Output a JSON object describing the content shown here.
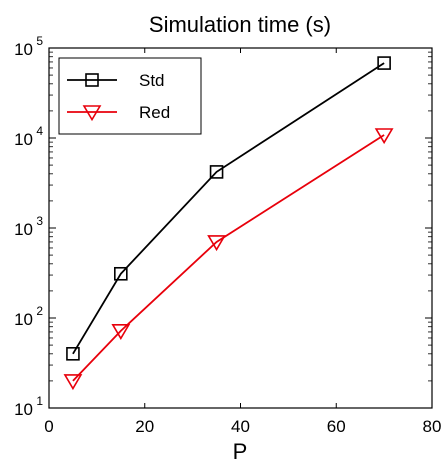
{
  "chart_data": {
    "type": "line",
    "title": "Simulation time (s)",
    "xlabel": "P",
    "ylabel": "",
    "xlim": [
      0,
      80
    ],
    "ylim": [
      10,
      100000
    ],
    "yscale": "log",
    "x_ticks": [
      "0",
      "20",
      "40",
      "60",
      "80"
    ],
    "y_ticks": [
      {
        "base": "10",
        "exp": "1"
      },
      {
        "base": "10",
        "exp": "2"
      },
      {
        "base": "10",
        "exp": "3"
      },
      {
        "base": "10",
        "exp": "4"
      },
      {
        "base": "10",
        "exp": "5"
      }
    ],
    "legend_position": "top-left",
    "series": [
      {
        "name": "Std",
        "color": "#000000",
        "marker": "square",
        "x": [
          5,
          15,
          35,
          70
        ],
        "y": [
          40,
          310,
          4200,
          68000
        ]
      },
      {
        "name": "Red",
        "color": "#e8000b",
        "marker": "triangle-down",
        "x": [
          5,
          15,
          35,
          70
        ],
        "y": [
          20,
          72,
          700,
          10800
        ]
      }
    ]
  }
}
